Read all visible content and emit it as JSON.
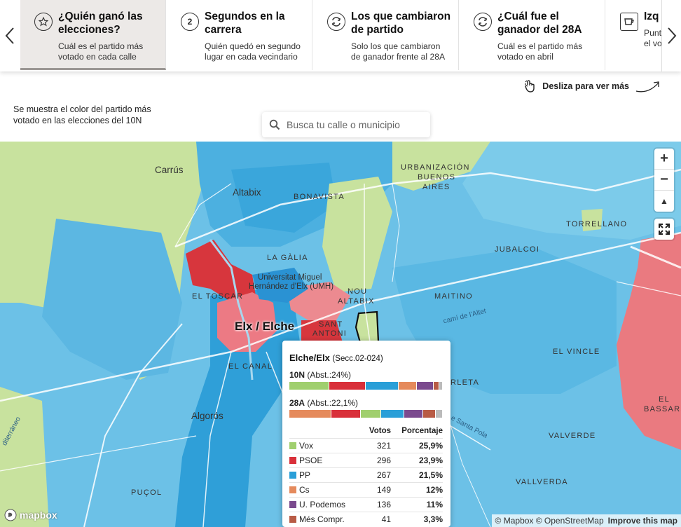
{
  "tabs": [
    {
      "icon": "star-icon",
      "title": "¿Quién ganó las elecciones?",
      "desc": "Cuál es el partido más votado en cada calle",
      "active": true
    },
    {
      "icon": "number-two-icon",
      "icon_text": "2",
      "title": "Segundos en la carrera",
      "desc": "Quién quedó en segundo lugar en cada vecindario"
    },
    {
      "icon": "swap-icon",
      "title": "Los que cambiaron de partido",
      "desc": "Solo los que cambiaron de ganador frente al 28A"
    },
    {
      "icon": "swap-icon",
      "title": "¿Cuál fue el ganador del 28A",
      "desc": "Cuál es el partido más votado en abril"
    },
    {
      "icon": "cup-icon",
      "title": "Izq",
      "desc": "Punt el vo"
    }
  ],
  "swipe_hint": "Desliza para ver más",
  "caption": "Se muestra el color del partido más votado en las elecciones del 10N",
  "search": {
    "placeholder": "Busca tu calle o municipio"
  },
  "map": {
    "labels": {
      "carrus": "Carrús",
      "altabix": "Altabix",
      "bonavista": "BONAVISTA",
      "urbanizacion": "URBANIZACIÓN",
      "buenos": "BUENOS",
      "aires": "AIRES",
      "torrellano": "TORRELLANO",
      "jubalcoi": "JUBALCOI",
      "la_galia": "LA GÀLIA",
      "universitat_1": "Universitat Miguel",
      "universitat_2": "Hernández d'Elx (UMH)",
      "el_toscar": "EL TOSCAR",
      "nou": "NOU",
      "altabix_upper": "ALTABIX",
      "maitino": "MAITINO",
      "elx": "Elx / Elche",
      "sant": "SANT",
      "antoni": "ANTONI",
      "cami": "camí de l'Altet",
      "el_vincle": "EL VINCLE",
      "el_canal": "EL CANAL",
      "rleta": "RLETA",
      "el": "EL",
      "bassars": "BASSARS",
      "algoros": "Algorós",
      "valverde": "VALVERDE",
      "santa_pola": "e Santa Pola",
      "mediterraneo": "diterráneo",
      "pucol": "PUÇOL",
      "vallverda": "VALLVERDA"
    },
    "controls": {
      "zoom_in": "+",
      "zoom_out": "−",
      "compass": "▲",
      "fullscreen": "⤢"
    },
    "mapbox_logo": "mapbox",
    "attribution": "© Mapbox © OpenStreetMap",
    "improve": "Improve this map"
  },
  "popup": {
    "place": "Elche/Elx",
    "section": "(Secc.02-024)",
    "elections": [
      {
        "name": "10N",
        "abst": "(Abst.:24%)"
      },
      {
        "name": "28A",
        "abst": "(Abst.:22,1%)"
      }
    ],
    "columns": {
      "votes": "Votos",
      "pct": "Porcentaje"
    },
    "rows": [
      {
        "party": "Vox",
        "votes": "321",
        "pct": "25,9%",
        "color": "#a0cf6e"
      },
      {
        "party": "PSOE",
        "votes": "296",
        "pct": "23,9%",
        "color": "#d9303a"
      },
      {
        "party": "PP",
        "votes": "267",
        "pct": "21,5%",
        "color": "#2a9fd8"
      },
      {
        "party": "Cs",
        "votes": "149",
        "pct": "12%",
        "color": "#e58a5c"
      },
      {
        "party": "U. Podemos",
        "votes": "136",
        "pct": "11%",
        "color": "#7b4a8e"
      },
      {
        "party": "Més Compr.",
        "votes": "41",
        "pct": "3,3%",
        "color": "#b85b45"
      }
    ],
    "bar_10n": [
      25.9,
      23.9,
      21.5,
      12,
      11,
      3.3,
      2.4
    ],
    "bar_28a": [
      27.5,
      19.0,
      13.5,
      15.0,
      12.0,
      8.5,
      4.5
    ],
    "colors_28a": [
      "#e58a5c",
      "#d9303a",
      "#a0cf6e",
      "#2a9fd8",
      "#7b4a8e",
      "#b85b45",
      "#bbbbbb"
    ]
  }
}
